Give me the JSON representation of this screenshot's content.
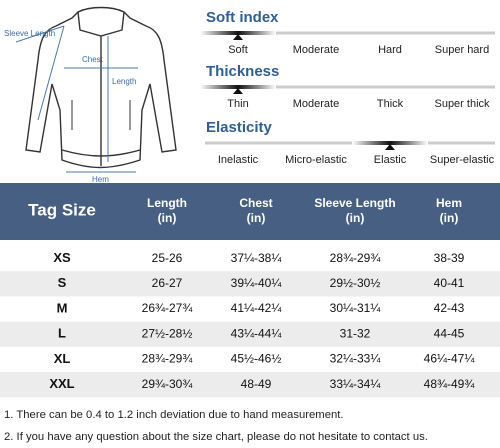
{
  "diagram": {
    "labels": {
      "sleeve": "Sleeve Length",
      "chest": "Chest",
      "length": "Length",
      "hem": "Hem"
    }
  },
  "scales": [
    {
      "title": "Soft index",
      "options": [
        "Soft",
        "Moderate",
        "Hard",
        "Super hard"
      ],
      "selected": 0
    },
    {
      "title": "Thickness",
      "options": [
        "Thin",
        "Moderate",
        "Thick",
        "Super thick"
      ],
      "selected": 0
    },
    {
      "title": "Elasticity",
      "options": [
        "Inelastic",
        "Micro-elastic",
        "Elastic",
        "Super-elastic"
      ],
      "selected": 2
    }
  ],
  "table": {
    "header": [
      {
        "name": "Tag Size"
      },
      {
        "name": "Length",
        "unit": "(in)"
      },
      {
        "name": "Chest",
        "unit": "(in)"
      },
      {
        "name": "Sleeve Length",
        "unit": "(in)"
      },
      {
        "name": "Hem",
        "unit": "(in)"
      }
    ],
    "rows": [
      [
        "XS",
        "25-26",
        "37¼-38¼",
        "28¾-29¾",
        "38-39"
      ],
      [
        "S",
        "26-27",
        "39¼-40¼",
        "29½-30½",
        "40-41"
      ],
      [
        "M",
        "26¾-27¾",
        "41¼-42¼",
        "30¼-31¼",
        "42-43"
      ],
      [
        "L",
        "27½-28½",
        "43¼-44¼",
        "31-32",
        "44-45"
      ],
      [
        "XL",
        "28¾-29¾",
        "45½-46½",
        "32¼-33¼",
        "46¼-47¼"
      ],
      [
        "XXL",
        "29¾-30¾",
        "48-49",
        "33¼-34¼",
        "48¾-49¾"
      ]
    ]
  },
  "notes": [
    "1. There can be 0.4 to 1.2 inch deviation due to hand measurement.",
    "2. If you have any question about the size chart, please do not hesitate to contact us."
  ]
}
